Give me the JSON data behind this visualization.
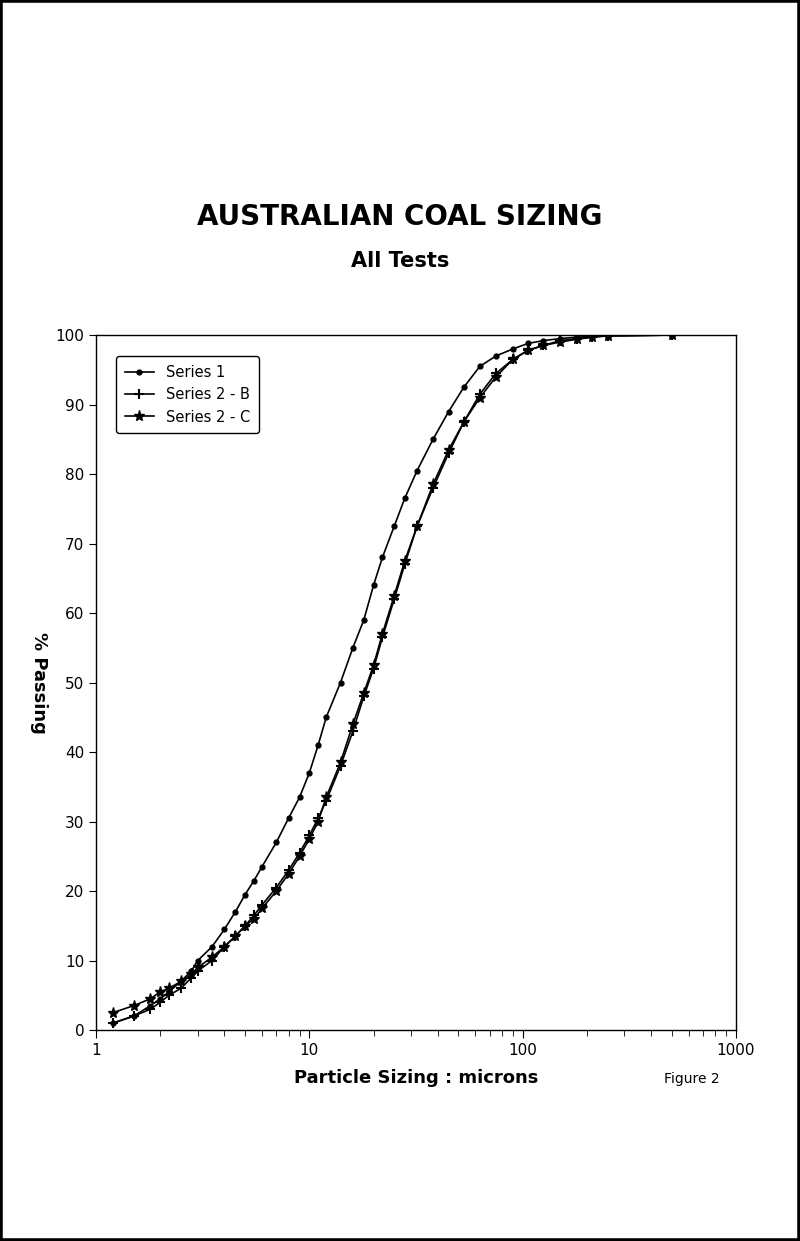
{
  "title": "AUSTRALIAN COAL SIZING",
  "subtitle": "All Tests",
  "xlabel": "Particle Sizing : microns",
  "ylabel": "% Passing",
  "figure_label": "Figure 2",
  "xlim": [
    1,
    1000
  ],
  "ylim": [
    0,
    100
  ],
  "yticks": [
    0,
    10,
    20,
    30,
    40,
    50,
    60,
    70,
    80,
    90,
    100
  ],
  "series1": {
    "label": "Series 1",
    "x": [
      1.2,
      1.5,
      1.8,
      2.0,
      2.2,
      2.5,
      2.8,
      3.0,
      3.5,
      4.0,
      4.5,
      5.0,
      5.5,
      6.0,
      7.0,
      8.0,
      9.0,
      10.0,
      11.0,
      12.0,
      14.0,
      16.0,
      18.0,
      20.0,
      22.0,
      25.0,
      28.0,
      32.0,
      38.0,
      45.0,
      53.0,
      63.0,
      75.0,
      90.0,
      106.0,
      125.0,
      150.0,
      180.0,
      212.0,
      250.0,
      500.0
    ],
    "y": [
      1.0,
      2.0,
      3.5,
      4.5,
      5.5,
      7.0,
      8.5,
      10.0,
      12.0,
      14.5,
      17.0,
      19.5,
      21.5,
      23.5,
      27.0,
      30.5,
      33.5,
      37.0,
      41.0,
      45.0,
      50.0,
      55.0,
      59.0,
      64.0,
      68.0,
      72.5,
      76.5,
      80.5,
      85.0,
      89.0,
      92.5,
      95.5,
      97.0,
      98.0,
      98.8,
      99.2,
      99.5,
      99.7,
      99.8,
      99.9,
      100.0
    ]
  },
  "series2b": {
    "label": "Series 2 - B",
    "x": [
      1.2,
      1.5,
      1.8,
      2.0,
      2.2,
      2.5,
      2.8,
      3.0,
      3.5,
      4.0,
      4.5,
      5.0,
      5.5,
      6.0,
      7.0,
      8.0,
      9.0,
      10.0,
      11.0,
      12.0,
      14.0,
      16.0,
      18.0,
      20.0,
      22.0,
      25.0,
      28.0,
      32.0,
      38.0,
      45.0,
      53.0,
      63.0,
      75.0,
      90.0,
      106.0,
      125.0,
      150.0,
      180.0,
      212.0,
      250.0,
      500.0
    ],
    "y": [
      1.0,
      2.0,
      3.0,
      4.0,
      5.0,
      6.0,
      7.5,
      8.5,
      10.0,
      12.0,
      13.5,
      15.0,
      16.5,
      18.0,
      20.5,
      23.0,
      25.5,
      28.0,
      30.5,
      33.0,
      38.0,
      43.0,
      48.0,
      52.0,
      56.5,
      62.0,
      67.0,
      72.5,
      78.0,
      83.0,
      87.5,
      91.5,
      94.5,
      96.5,
      97.8,
      98.5,
      99.2,
      99.5,
      99.7,
      99.9,
      100.0
    ]
  },
  "series2c": {
    "label": "Series 2 - C",
    "x": [
      1.2,
      1.5,
      1.8,
      2.0,
      2.2,
      2.5,
      2.8,
      3.0,
      3.5,
      4.0,
      4.5,
      5.0,
      5.5,
      6.0,
      7.0,
      8.0,
      9.0,
      10.0,
      11.0,
      12.0,
      14.0,
      16.0,
      18.0,
      20.0,
      22.0,
      25.0,
      28.0,
      32.0,
      38.0,
      45.0,
      53.0,
      63.0,
      75.0,
      90.0,
      106.0,
      125.0,
      150.0,
      180.0,
      212.0,
      250.0,
      500.0
    ],
    "y": [
      2.5,
      3.5,
      4.5,
      5.5,
      6.0,
      7.0,
      8.0,
      9.0,
      10.5,
      12.0,
      13.5,
      15.0,
      16.0,
      17.5,
      20.0,
      22.5,
      25.0,
      27.5,
      30.0,
      33.5,
      38.5,
      44.0,
      48.5,
      52.5,
      57.0,
      62.5,
      67.5,
      72.5,
      78.5,
      83.5,
      87.5,
      91.0,
      94.0,
      96.5,
      97.8,
      98.5,
      99.0,
      99.4,
      99.7,
      99.9,
      100.0
    ]
  },
  "background_color": "#ffffff",
  "border_color": "#000000",
  "title_fontsize": 20,
  "subtitle_fontsize": 15,
  "axis_label_fontsize": 13,
  "tick_fontsize": 11
}
